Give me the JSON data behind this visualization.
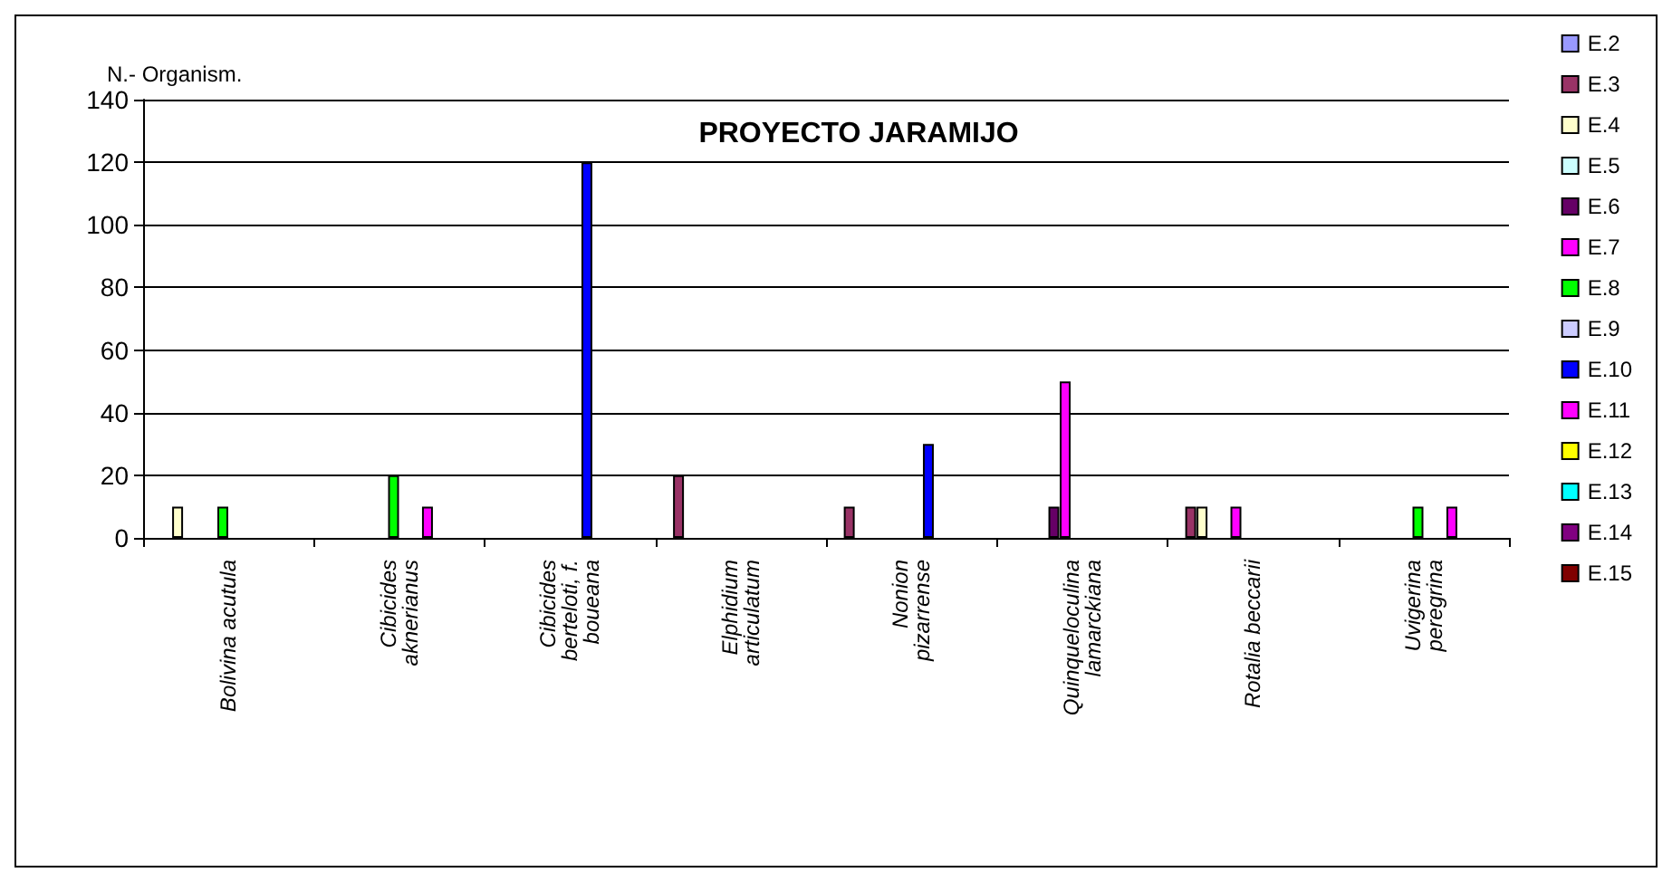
{
  "chart_data": {
    "type": "bar",
    "title": "PROYECTO JARAMIJO",
    "ylabel": "N.- Organism.",
    "categories": [
      "Bolivina acutula",
      "Cibicides\naknerianus",
      "Cibicides\nberteloti, f.\nboueana",
      "Elphidium\narticulatum",
      "Nonion\npizarrense",
      "Quinqueloculina\nlamarckiana",
      "Rotalia beccarii",
      "Uvigerina\nperegrina"
    ],
    "series": [
      {
        "name": "E.2",
        "color": "#9999ff",
        "values": [
          null,
          null,
          null,
          null,
          null,
          null,
          null,
          null
        ]
      },
      {
        "name": "E.3",
        "color": "#993366",
        "values": [
          null,
          null,
          null,
          20,
          10,
          null,
          10,
          null
        ]
      },
      {
        "name": "E.4",
        "color": "#ffffcc",
        "values": [
          10,
          null,
          null,
          null,
          null,
          null,
          10,
          null
        ]
      },
      {
        "name": "E.5",
        "color": "#ccffff",
        "values": [
          null,
          null,
          null,
          null,
          null,
          null,
          null,
          null
        ]
      },
      {
        "name": "E.6",
        "color": "#660066",
        "values": [
          null,
          null,
          null,
          null,
          null,
          10,
          null,
          null
        ]
      },
      {
        "name": "E.7",
        "color": "#ff00ff",
        "values": [
          null,
          null,
          null,
          null,
          null,
          50,
          10,
          null
        ]
      },
      {
        "name": "E.8",
        "color": "#00ff00",
        "values": [
          10,
          20,
          null,
          null,
          null,
          null,
          null,
          10
        ]
      },
      {
        "name": "E.9",
        "color": "#ccccff",
        "values": [
          null,
          null,
          null,
          null,
          null,
          null,
          null,
          null
        ]
      },
      {
        "name": "E.10",
        "color": "#0000ff",
        "values": [
          null,
          null,
          120,
          null,
          30,
          null,
          null,
          null
        ]
      },
      {
        "name": "E.11",
        "color": "#ff00ff",
        "values": [
          null,
          10,
          null,
          null,
          null,
          null,
          null,
          10
        ]
      },
      {
        "name": "E.12",
        "color": "#ffff00",
        "values": [
          null,
          null,
          null,
          null,
          null,
          null,
          null,
          null
        ]
      },
      {
        "name": "E.13",
        "color": "#00ffff",
        "values": [
          null,
          null,
          null,
          null,
          null,
          null,
          null,
          null
        ]
      },
      {
        "name": "E.14",
        "color": "#800080",
        "values": [
          null,
          null,
          null,
          null,
          null,
          null,
          null,
          null
        ]
      },
      {
        "name": "E.15",
        "color": "#800000",
        "values": [
          null,
          null,
          null,
          null,
          null,
          null,
          null,
          null
        ]
      }
    ],
    "ylim": [
      0,
      140
    ],
    "yticks": [
      0,
      20,
      40,
      60,
      80,
      100,
      120,
      140
    ],
    "grid": "y",
    "legend": "right"
  }
}
